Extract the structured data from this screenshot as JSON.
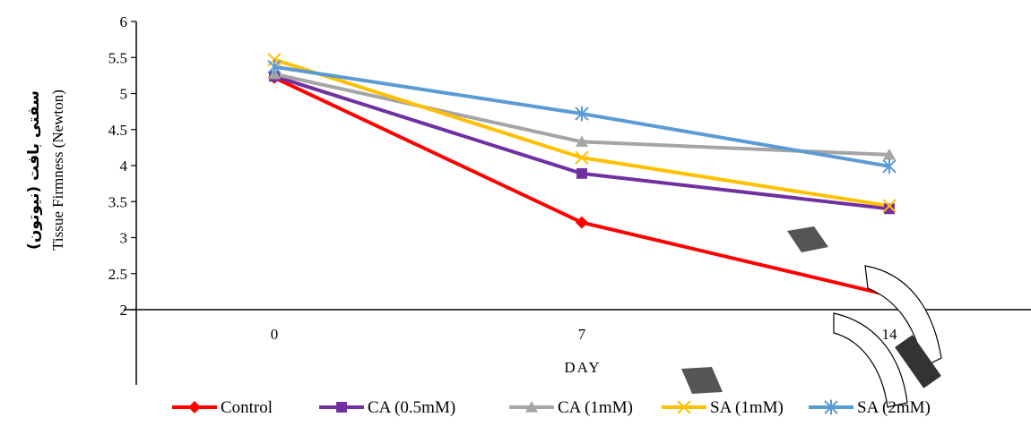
{
  "chart_data": {
    "type": "line",
    "categories": [
      "0",
      "7",
      "14"
    ],
    "xlabel": "DAY",
    "ylabel_fa": "سفتی بافت (نیوتون)",
    "ylabel_en": "Tissue Firmness (Newton)",
    "ylim": [
      2,
      6
    ],
    "yticks": [
      "2",
      "2.5",
      "3",
      "3.5",
      "4",
      "4.5",
      "5",
      "5.5",
      "6"
    ],
    "grid": false,
    "legend_position": "bottom",
    "series": [
      {
        "name": "Control",
        "values": [
          5.22,
          3.21,
          2.2
        ],
        "color": "#ff0000",
        "marker": "diamond"
      },
      {
        "name": "CA (0.5mM)",
        "values": [
          5.24,
          3.89,
          3.4
        ],
        "color": "#7030a0",
        "marker": "square"
      },
      {
        "name": "CA (1mM)",
        "values": [
          5.27,
          4.33,
          4.15
        ],
        "color": "#a5a5a5",
        "marker": "triangle"
      },
      {
        "name": "SA (1mM)",
        "values": [
          5.47,
          4.11,
          3.44
        ],
        "color": "#ffc000",
        "marker": "x"
      },
      {
        "name": "SA (2mM)",
        "values": [
          5.37,
          4.72,
          3.99
        ],
        "color": "#5b9bd5",
        "marker": "asterisk"
      }
    ]
  }
}
